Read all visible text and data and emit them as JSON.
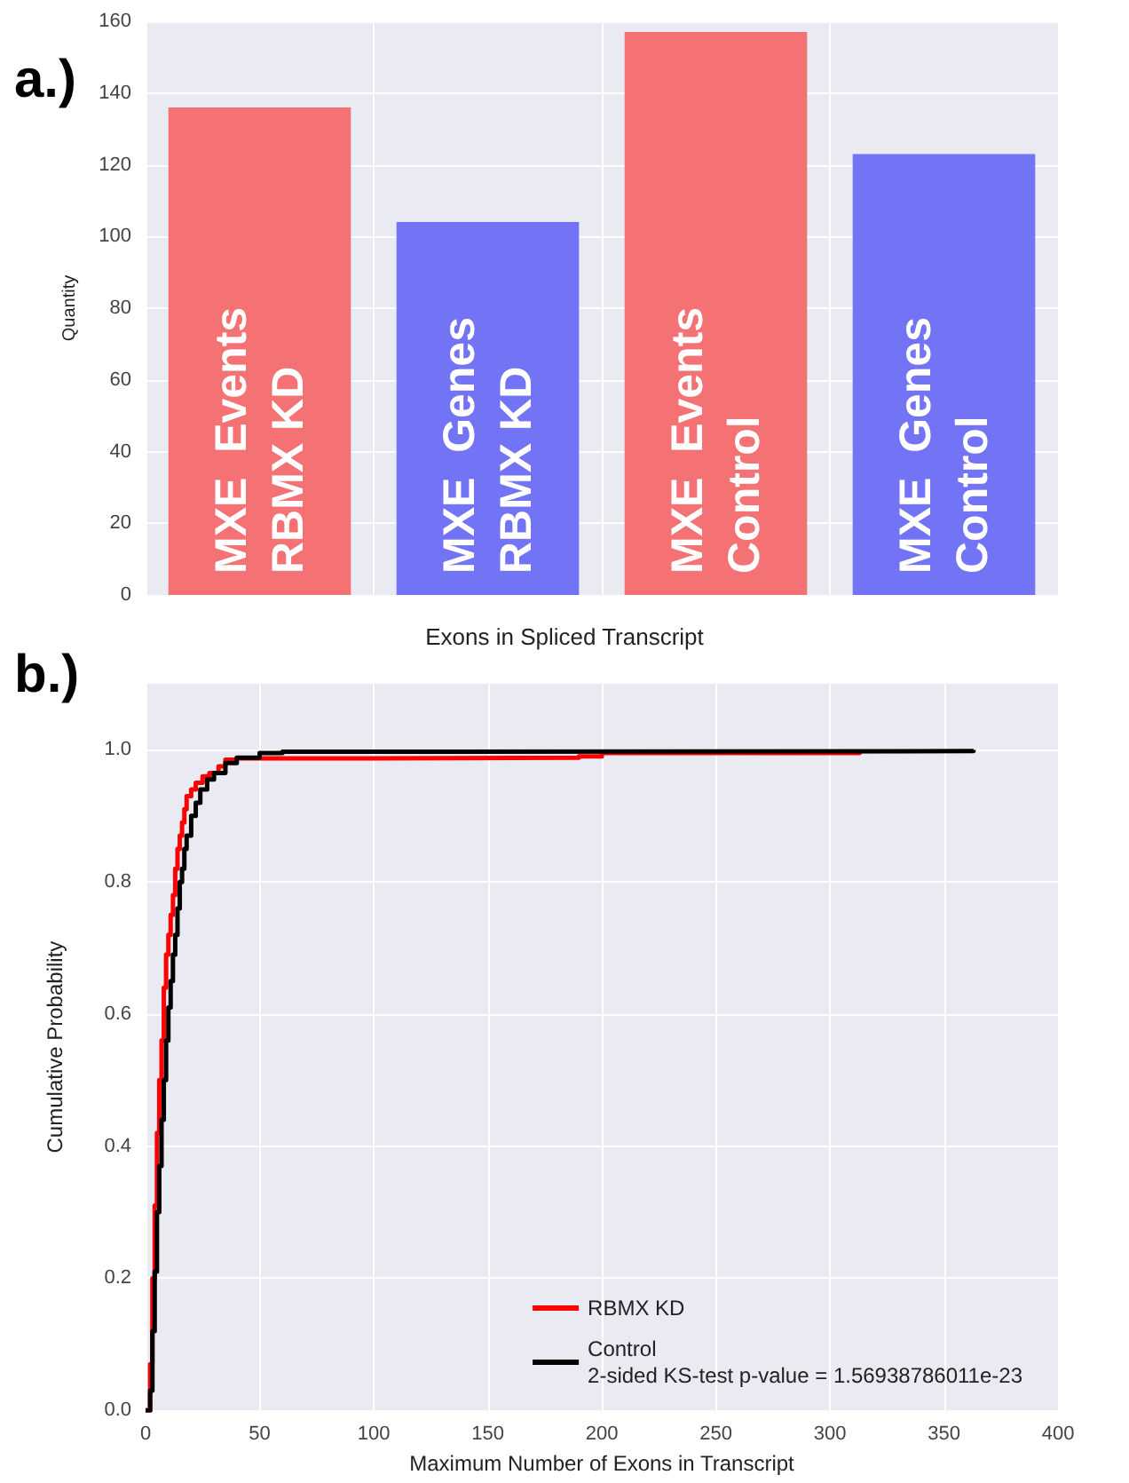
{
  "chart_data": [
    {
      "type": "bar",
      "annotations": [
        "a.)"
      ],
      "ylabel": "Quantity",
      "categories": [
        "MXE  Events\nRBMX KD",
        "MXE  Genes\nRBMX KD",
        "MXE  Events\nControl",
        "MXE  Genes\nControl"
      ],
      "values": [
        136,
        104,
        157,
        123
      ],
      "colors": [
        "#f47174",
        "#7273f5",
        "#f47174",
        "#7273f5"
      ],
      "ylim": [
        0,
        160
      ],
      "yticks": [
        0,
        20,
        40,
        60,
        80,
        100,
        120,
        140,
        160
      ],
      "grid": true,
      "tick_labels": "y"
    },
    {
      "type": "step",
      "title": "Exons in Spliced Transcript",
      "annotations": [
        "b.)"
      ],
      "xlabel": "Maximum Number of Exons in Transcript",
      "ylabel": "Cumulative Probability",
      "series": [
        {
          "name": "RBMX KD",
          "color": "#ff0000",
          "x": [
            0,
            2,
            3,
            4,
            5,
            6,
            7,
            8,
            9,
            10,
            11,
            12,
            13,
            14,
            15,
            16,
            17,
            18,
            20,
            22,
            25,
            28,
            32,
            35,
            40,
            100,
            190,
            200,
            313
          ],
          "values": [
            0,
            0.07,
            0.2,
            0.31,
            0.42,
            0.5,
            0.56,
            0.64,
            0.69,
            0.72,
            0.75,
            0.78,
            0.82,
            0.85,
            0.87,
            0.89,
            0.91,
            0.93,
            0.94,
            0.95,
            0.96,
            0.965,
            0.975,
            0.985,
            0.987,
            0.988,
            0.99,
            0.995,
            0.997
          ]
        },
        {
          "name": "Control\n2-sided KS-test p-value = 1.56938786011e-23",
          "color": "#000000",
          "x": [
            0,
            2,
            3,
            4,
            5,
            6,
            7,
            8,
            9,
            10,
            11,
            12,
            13,
            14,
            15,
            16,
            17,
            18,
            20,
            22,
            24,
            27,
            30,
            35,
            40,
            50,
            60,
            100,
            363
          ],
          "values": [
            0,
            0.03,
            0.12,
            0.21,
            0.3,
            0.37,
            0.44,
            0.5,
            0.56,
            0.61,
            0.65,
            0.69,
            0.72,
            0.76,
            0.8,
            0.82,
            0.85,
            0.87,
            0.9,
            0.92,
            0.94,
            0.955,
            0.965,
            0.98,
            0.988,
            0.995,
            0.997,
            0.998,
            1.0
          ]
        }
      ],
      "xlim": [
        0,
        400
      ],
      "xticks": [
        0,
        50,
        100,
        150,
        200,
        250,
        300,
        350,
        400
      ],
      "ylim": [
        0,
        1.1
      ],
      "yticks": [
        {
          "value": 0,
          "label": "0.0"
        },
        {
          "value": 0.2,
          "label": "0.2"
        },
        {
          "value": 0.4,
          "label": "0.4"
        },
        {
          "value": 0.6,
          "label": "0.6"
        },
        {
          "value": 0.8,
          "label": "0.8"
        },
        {
          "value": 1.0,
          "label": "1.0"
        }
      ],
      "grid": true,
      "legend": "bottom right",
      "marker": "none",
      "line_style": "solid"
    }
  ]
}
